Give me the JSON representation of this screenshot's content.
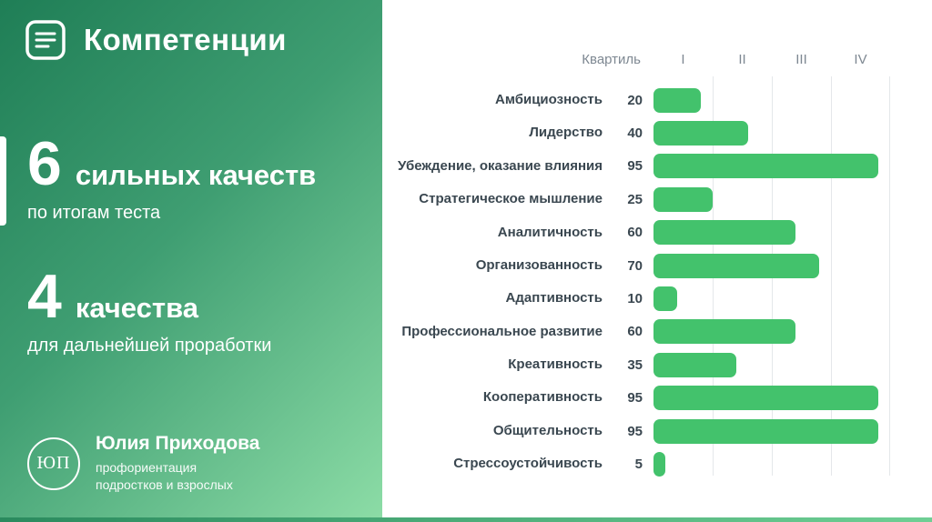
{
  "left_panel": {
    "title": "Компетенции",
    "stat1": {
      "number": "6",
      "label": "сильных качеств",
      "sub": "по итогам теста"
    },
    "stat2": {
      "number": "4",
      "label": "качества",
      "sub": "для дальнейшей проработки"
    },
    "footer": {
      "monogram": "ЮП",
      "name": "Юлия Приходова",
      "line1": "профориентация",
      "line2": "подростков и взрослых"
    }
  },
  "colors": {
    "panel_gradient_start": "#1f7e56",
    "panel_gradient_end": "#8cdca6",
    "bar_green": "#43c26c",
    "text_dark": "#3a4750",
    "gridline": "#e4e7ea",
    "header_gray": "#7e8892"
  },
  "chart_data": {
    "type": "bar",
    "orientation": "horizontal",
    "title": "",
    "quartile_label": "Квартиль",
    "quartiles": [
      "I",
      "II",
      "III",
      "IV"
    ],
    "categories": [
      "Амбициозность",
      "Лидерство",
      "Убеждение, оказание влияния",
      "Стратегическое мышление",
      "Аналитичность",
      "Организованность",
      "Адаптивность",
      "Профессиональное развитие",
      "Креативность",
      "Кооперативность",
      "Общительность",
      "Стрессоустойчивость"
    ],
    "values": [
      20,
      40,
      95,
      25,
      60,
      70,
      10,
      60,
      35,
      95,
      95,
      5
    ],
    "xlim": [
      0,
      100
    ],
    "bar_color": "#43c26c",
    "grid": "vertical quartile boundary lines",
    "legend": "none"
  }
}
